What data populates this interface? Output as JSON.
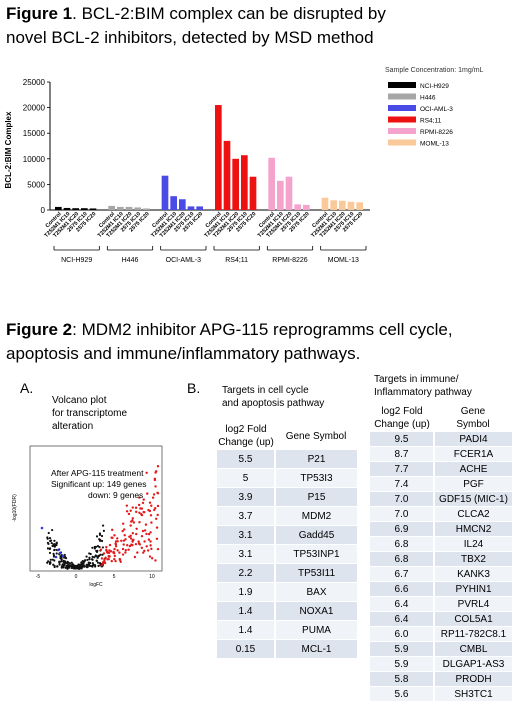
{
  "figure1": {
    "title_bold": "Figure 1",
    "title_rest": ". BCL-2:BIM complex can be disrupted by novel BCL-2 inhibitors, detected by MSD method",
    "title_line1_rest": ". BCL-2:BIM complex can be disrupted by",
    "title_line2": "novel BCL-2 inhibitors, detected by MSD method",
    "sample_conc": "Sample Concentration: 1mg/mL"
  },
  "chart_data": {
    "type": "bar",
    "ylabel": "BCL-2:BIM Complex",
    "ylim": [
      0,
      25000
    ],
    "yticks": [
      0,
      5000,
      10000,
      15000,
      20000,
      25000
    ],
    "grid": false,
    "legend_position": "right",
    "bar_labels": [
      "Control",
      "T252M1 IC10",
      "T252M1 IC20",
      "2575 IC10",
      "2575 IC20"
    ],
    "groups": [
      {
        "name": "NCI-H929",
        "color": "#000000",
        "values": [
          600,
          400,
          350,
          350,
          300
        ]
      },
      {
        "name": "H446",
        "color": "#a6a6a6",
        "values": [
          800,
          600,
          600,
          500,
          300
        ]
      },
      {
        "name": "OCI-AML-3",
        "color": "#4a4ae6",
        "values": [
          6700,
          2700,
          2100,
          700,
          700
        ]
      },
      {
        "name": "RS4;11",
        "color": "#ee1111",
        "values": [
          20500,
          13500,
          10000,
          10700,
          6500
        ]
      },
      {
        "name": "RPMI-8226",
        "color": "#f4a3cd",
        "values": [
          10200,
          5700,
          6500,
          1100,
          1000
        ]
      },
      {
        "name": "MOML-13",
        "color": "#f9c99a",
        "values": [
          2400,
          1900,
          1800,
          1600,
          1500
        ]
      }
    ]
  },
  "figure2": {
    "title_bold": "Figure 2",
    "title_line1_rest": ": MDM2 inhibitor APG-115 reprogramms cell cycle,",
    "title_line2": "apoptosis  and immune/inflammatory pathways."
  },
  "panelA": {
    "label": "A.",
    "caption": [
      "Volcano plot",
      "for transcriptome",
      "alteration"
    ],
    "annotation": [
      "After APG-115 treatment",
      "Significant up: 149 genes",
      "down: 9 genes"
    ],
    "xlabel": "logFC",
    "ylabel": "-log10(FDR)",
    "xticks": [
      "-5",
      "0",
      "5",
      "10"
    ]
  },
  "panelB": {
    "label": "B.",
    "title": [
      "Targets in cell cycle",
      "and apoptosis pathway"
    ],
    "col1": [
      "log2 Fold",
      "Change (up)"
    ],
    "col2": "Gene Symbol",
    "rows": [
      [
        "5.5",
        "P21"
      ],
      [
        "5",
        "TP53I3"
      ],
      [
        "3.9",
        "P15"
      ],
      [
        "3.7",
        "MDM2"
      ],
      [
        "3.1",
        "Gadd45"
      ],
      [
        "3.1",
        "TP53INP1"
      ],
      [
        "2.2",
        "TP53I11"
      ],
      [
        "1.9",
        "BAX"
      ],
      [
        "1.4",
        "NOXA1"
      ],
      [
        "1.4",
        "PUMA"
      ],
      [
        "0.15",
        "MCL-1"
      ]
    ]
  },
  "panelC": {
    "title": [
      "Targets in immune/",
      "Inflammatory  pathway"
    ],
    "col1": [
      "log2 Fold",
      "Change (up)"
    ],
    "col2": [
      "Gene",
      "Symbol"
    ],
    "rows": [
      [
        "9.5",
        "PADI4"
      ],
      [
        "8.7",
        "FCER1A"
      ],
      [
        "7.7",
        "ACHE"
      ],
      [
        "7.4",
        "PGF"
      ],
      [
        "7.0",
        "GDF15 (MIC-1)"
      ],
      [
        "7.0",
        "CLCA2"
      ],
      [
        "6.9",
        "HMCN2"
      ],
      [
        "6.8",
        "IL24"
      ],
      [
        "6.8",
        "TBX2"
      ],
      [
        "6.7",
        "KANK3"
      ],
      [
        "6.6",
        "PYHIN1"
      ],
      [
        "6.4",
        "PVRL4"
      ],
      [
        "6.4",
        "COL5A1"
      ],
      [
        "6.0",
        "RP11-782C8.1"
      ],
      [
        "5.9",
        "CMBL"
      ],
      [
        "5.9",
        "DLGAP1-AS3"
      ],
      [
        "5.8",
        "PRODH"
      ],
      [
        "5.6",
        "SH3TC1"
      ]
    ]
  }
}
